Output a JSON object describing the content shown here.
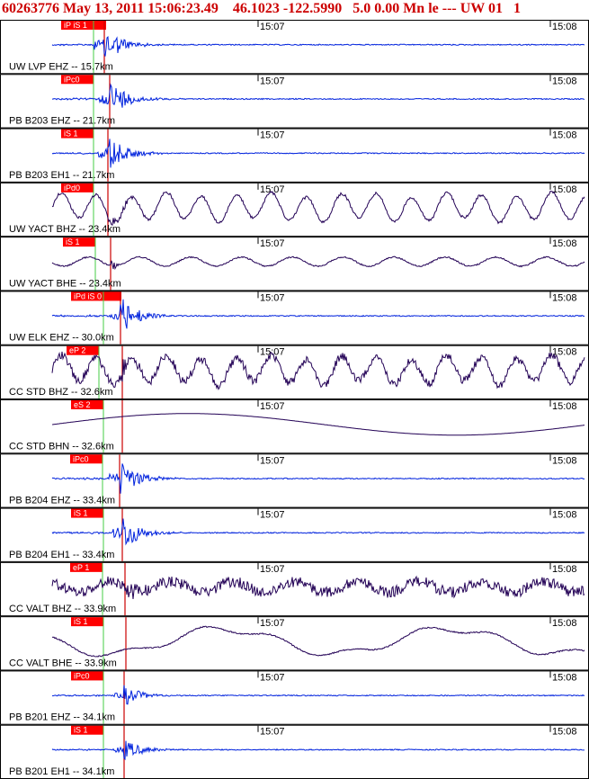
{
  "header": {
    "event_id": "60263776",
    "datetime": "May 13, 2011 15:06:23.49",
    "lat": "46.1023",
    "lon": "-122.5990",
    "depth": "5.0",
    "mag": "0.00",
    "mag_type": "Mn",
    "type": "le",
    "dash": "---",
    "network": "UW",
    "version": "01",
    "extra": "1"
  },
  "chart_data": {
    "type": "line",
    "time_ticks": [
      "15:07",
      "15:08"
    ],
    "colors": {
      "pick_box": "#ff0000",
      "pick_line": "#cc0000",
      "wave_short": "#0022dd",
      "wave_broad": "#220055",
      "green_line": "#44cc44"
    },
    "traces": [
      {
        "label": "UW LVP EHZ -- 15.7km",
        "pick": "iP iS 1",
        "kind": "spike"
      },
      {
        "label": "PB B203 EHZ -- 21.7km",
        "pick": "iPc0",
        "kind": "spike"
      },
      {
        "label": "PB B203 EH1 -- 21.7km",
        "pick": "iS 1",
        "kind": "spike"
      },
      {
        "label": "UW YACT BHZ -- 23.4km",
        "pick": "iPd0",
        "kind": "oscillating"
      },
      {
        "label": "UW YACT BHE -- 23.4km",
        "pick": "iS 1",
        "kind": "slow"
      },
      {
        "label": "UW ELK EHZ -- 30.0km",
        "pick": "iPd iS 0",
        "kind": "spike"
      },
      {
        "label": "CC STD BHZ -- 32.6km",
        "pick": "eP 2",
        "kind": "oscillating_noisy"
      },
      {
        "label": "CC STD BHN -- 32.6km",
        "pick": "eS 2",
        "kind": "drift"
      },
      {
        "label": "PB B204 EHZ -- 33.4km",
        "pick": "iPc0",
        "kind": "spike"
      },
      {
        "label": "PB B204 EH1 -- 33.4km",
        "pick": "iS 1",
        "kind": "spike"
      },
      {
        "label": "CC VALT BHZ -- 33.9km",
        "pick": "eP 1",
        "kind": "noisy"
      },
      {
        "label": "CC VALT BHE -- 33.9km",
        "pick": "iS 1",
        "kind": "wander"
      },
      {
        "label": "PB B201 EHZ -- 34.1km",
        "pick": "iPc0",
        "kind": "spike_small"
      },
      {
        "label": "PB B201 EH1 -- 34.1km",
        "pick": "iS 1",
        "kind": "spike_small"
      }
    ]
  }
}
